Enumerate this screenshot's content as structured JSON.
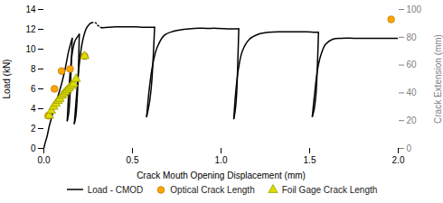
{
  "chart_data": {
    "type": "line",
    "xlabel": "Crack Mouth Opening Displacement (mm)",
    "ylabel": "Load (kN)",
    "y2label": "Crack Extension (mm)",
    "xlim": [
      0,
      2.0
    ],
    "ylim": [
      0,
      14
    ],
    "y2lim": [
      0,
      100
    ],
    "xticks": [
      {
        "value": 0.0,
        "label": "0.0"
      },
      {
        "value": 0.5,
        "label": "0.5"
      },
      {
        "value": 1.0,
        "label": "1.0"
      },
      {
        "value": 1.5,
        "label": "1.5"
      },
      {
        "value": 2.0,
        "label": "2.0"
      }
    ],
    "yticks": [
      0,
      2,
      4,
      6,
      8,
      10,
      12,
      14
    ],
    "y2ticks": [
      0,
      20,
      40,
      60,
      80,
      100
    ],
    "grid": false,
    "legend": "bottom",
    "series": [
      {
        "name": "Load - CMOD",
        "type": "line",
        "color": "black",
        "line_style": "solid",
        "segments": [
          {
            "x": [
              0.0,
              0.008,
              0.018,
              0.03,
              0.045,
              0.06,
              0.08,
              0.1,
              0.12,
              0.14,
              0.155,
              0.16
            ],
            "values": [
              0.0,
              0.6,
              1.2,
              2.2,
              3.2,
              4.2,
              5.3,
              6.5,
              8.0,
              9.8,
              10.8,
              11.1
            ]
          },
          {
            "x": [
              0.16,
              0.155,
              0.148,
              0.14,
              0.132
            ],
            "values": [
              11.1,
              8.5,
              5.5,
              3.5,
              2.8
            ]
          },
          {
            "x": [
              0.132,
              0.14,
              0.15,
              0.162,
              0.175,
              0.188,
              0.2
            ],
            "values": [
              2.8,
              5.5,
              8.0,
              9.8,
              10.8,
              11.2,
              11.5
            ]
          },
          {
            "x": [
              0.2,
              0.195,
              0.188,
              0.18,
              0.172
            ],
            "values": [
              11.5,
              8.0,
              5.0,
              3.2,
              2.5
            ]
          },
          {
            "x": [
              0.172,
              0.185,
              0.2,
              0.215,
              0.228,
              0.24,
              0.252,
              0.262,
              0.27
            ],
            "values": [
              2.5,
              5.5,
              8.5,
              10.5,
              11.5,
              12.1,
              12.4,
              12.6,
              12.65
            ]
          },
          {
            "x": [
              0.33,
              0.36,
              0.4,
              0.44,
              0.48,
              0.52,
              0.56,
              0.59,
              0.61,
              0.62,
              0.625
            ],
            "values": [
              12.15,
              12.2,
              12.25,
              12.25,
              12.25,
              12.25,
              12.2,
              12.2,
              12.2,
              12.2,
              12.2
            ]
          },
          {
            "x": [
              0.625,
              0.618,
              0.608,
              0.595,
              0.58
            ],
            "values": [
              12.2,
              9.5,
              6.5,
              4.5,
              3.2
            ]
          },
          {
            "x": [
              0.58,
              0.595,
              0.615,
              0.64,
              0.68,
              0.73,
              0.79,
              0.85,
              0.92,
              0.98,
              1.05,
              1.1
            ],
            "values": [
              3.2,
              6.0,
              8.5,
              10.2,
              11.4,
              11.8,
              12.0,
              12.1,
              12.1,
              12.1,
              12.05,
              12.05
            ]
          },
          {
            "x": [
              1.1,
              1.095,
              1.088,
              1.08,
              1.072
            ],
            "values": [
              12.05,
              9.0,
              5.5,
              3.8,
              3.0
            ]
          },
          {
            "x": [
              1.072,
              1.082,
              1.098,
              1.12,
              1.16,
              1.21,
              1.27,
              1.34,
              1.41,
              1.48,
              1.53,
              1.55
            ],
            "values": [
              3.0,
              5.5,
              8.0,
              9.8,
              11.0,
              11.5,
              11.7,
              11.75,
              11.75,
              11.75,
              11.7,
              11.7
            ]
          },
          {
            "x": [
              1.55,
              1.544,
              1.536,
              1.526,
              1.515
            ],
            "values": [
              11.7,
              8.5,
              5.5,
              4.0,
              3.2
            ]
          },
          {
            "x": [
              1.515,
              1.528,
              1.545,
              1.565,
              1.59,
              1.63,
              1.68,
              1.75,
              1.83,
              1.92,
              2.0
            ],
            "values": [
              3.2,
              5.5,
              8.0,
              9.5,
              10.5,
              11.0,
              11.1,
              11.1,
              11.1,
              11.1,
              11.1
            ]
          }
        ]
      },
      {
        "type": "line",
        "color": "black",
        "line_style": "dotted",
        "x": [
          0.27,
          0.278,
          0.286,
          0.293,
          0.298,
          0.302,
          0.308,
          0.314,
          0.32,
          0.325,
          0.33
        ],
        "values": [
          12.65,
          12.7,
          12.68,
          12.65,
          12.55,
          12.45,
          12.35,
          12.28,
          12.2,
          12.18,
          12.15
        ]
      },
      {
        "name": "Optical Crack Length",
        "type": "scatter",
        "marker": "circle",
        "color": "#FFA500",
        "x": [
          0.025,
          0.06,
          0.1,
          0.148,
          0.23,
          1.96
        ],
        "values": [
          3.3,
          6.0,
          7.8,
          8.0,
          9.3,
          13.0
        ]
      },
      {
        "name": "Foil Gage Crack Length",
        "type": "scatter",
        "marker": "triangle",
        "color": "#DDDD00",
        "x": [
          0.03,
          0.042,
          0.055,
          0.068,
          0.08,
          0.09,
          0.102,
          0.112,
          0.122,
          0.133,
          0.143,
          0.155,
          0.168,
          0.182,
          0.23
        ],
        "values": [
          3.3,
          3.8,
          4.2,
          4.5,
          4.8,
          5.0,
          5.3,
          5.5,
          5.7,
          5.9,
          6.1,
          6.3,
          6.5,
          7.0,
          9.3
        ]
      }
    ]
  }
}
